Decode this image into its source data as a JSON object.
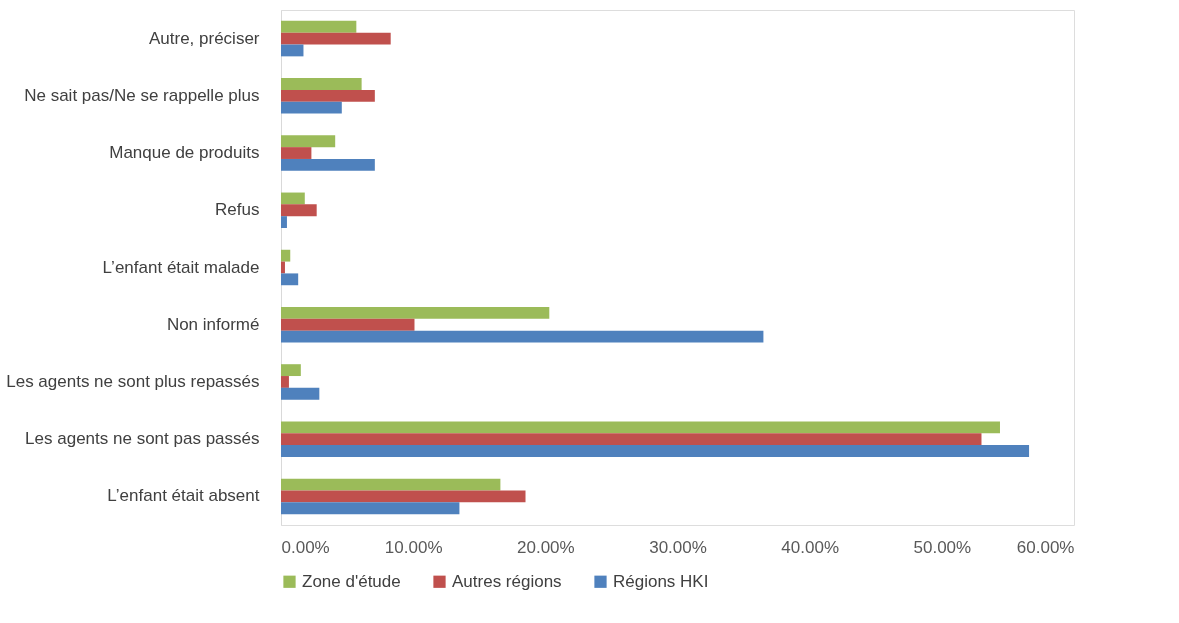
{
  "chart_data": {
    "type": "bar",
    "orientation": "horizontal",
    "categories": [
      "Autre, préciser",
      "Ne sait pas/Ne se rappelle plus",
      "Manque de produits",
      "Refus",
      "L’enfant était malade",
      "Non informé",
      "Les agents ne sont plus repassés",
      "Les agents ne sont pas passés",
      "L’enfant était absent"
    ],
    "series": [
      {
        "name": "Zone d'étude",
        "color": "#9bbb59",
        "values": [
          5.7,
          6.1,
          4.1,
          1.8,
          0.7,
          20.3,
          1.5,
          54.4,
          16.6
        ]
      },
      {
        "name": "Autres régions",
        "color": "#c0504d",
        "values": [
          8.3,
          7.1,
          2.3,
          2.7,
          0.3,
          10.1,
          0.6,
          53.0,
          18.5
        ]
      },
      {
        "name": "Régions HKI",
        "color": "#4f81bd",
        "values": [
          1.7,
          4.6,
          7.1,
          0.45,
          1.3,
          36.5,
          2.9,
          56.6,
          13.5
        ]
      }
    ],
    "xlim": [
      0,
      60
    ],
    "xticks": [
      {
        "value": 0,
        "label": "0.00%"
      },
      {
        "value": 10,
        "label": "10.00%"
      },
      {
        "value": 20,
        "label": "20.00%"
      },
      {
        "value": 30,
        "label": "30.00%"
      },
      {
        "value": 40,
        "label": "40.00%"
      },
      {
        "value": 50,
        "label": "50.00%"
      },
      {
        "value": 60,
        "label": "60.00%"
      }
    ],
    "grid": false,
    "legend": "bottom"
  }
}
